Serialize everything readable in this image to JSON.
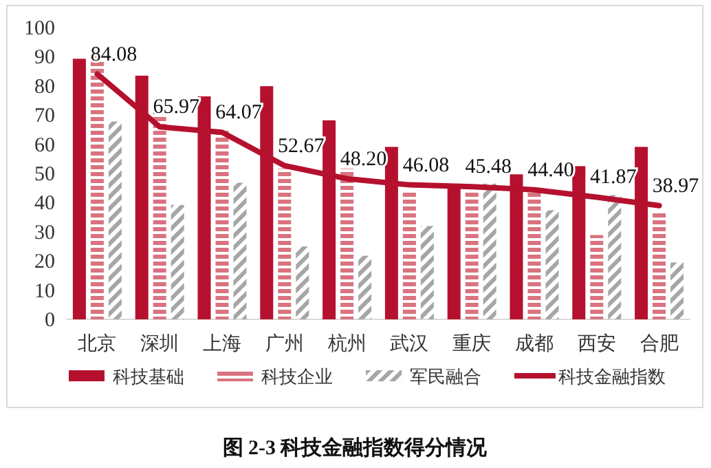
{
  "chart_data": {
    "type": "bar",
    "title": "图 2-3  科技金融指数得分情况",
    "categories": [
      "北京",
      "深圳",
      "上海",
      "广州",
      "杭州",
      "武汉",
      "重庆",
      "成都",
      "西安",
      "合肥"
    ],
    "series": [
      {
        "name": "科技基础",
        "color": "#b5112e",
        "values": [
          89.3,
          83.5,
          76.4,
          79.9,
          68.2,
          59.1,
          45.8,
          49.7,
          52.5,
          59.1
        ]
      },
      {
        "name": "科技企业",
        "color": "#d9737f",
        "values": [
          90.9,
          71.7,
          65.4,
          51.6,
          51.6,
          43.4,
          43.4,
          43.4,
          28.9,
          37.1
        ]
      },
      {
        "name": "军民融合",
        "color": "#a6a6a6",
        "values": [
          67.8,
          39.2,
          46.8,
          25.0,
          21.8,
          32.0,
          46.5,
          37.4,
          42.6,
          19.5
        ]
      },
      {
        "name": "科技金融指数",
        "type": "line",
        "color": "#b5112e",
        "data_labels": true,
        "values": [
          84.08,
          65.97,
          64.07,
          52.67,
          48.2,
          46.08,
          45.48,
          44.4,
          41.87,
          38.97
        ],
        "value_labels": [
          "84.08",
          "65.97",
          "64.07",
          "52.67",
          "48.20",
          "46.08",
          "45.48",
          "44.40",
          "41.87",
          "38.97"
        ]
      }
    ],
    "ylim": [
      0,
      100
    ],
    "yticks": [
      0,
      10,
      20,
      30,
      40,
      50,
      60,
      70,
      80,
      90,
      100
    ],
    "grid": false,
    "legend": "bottom"
  }
}
